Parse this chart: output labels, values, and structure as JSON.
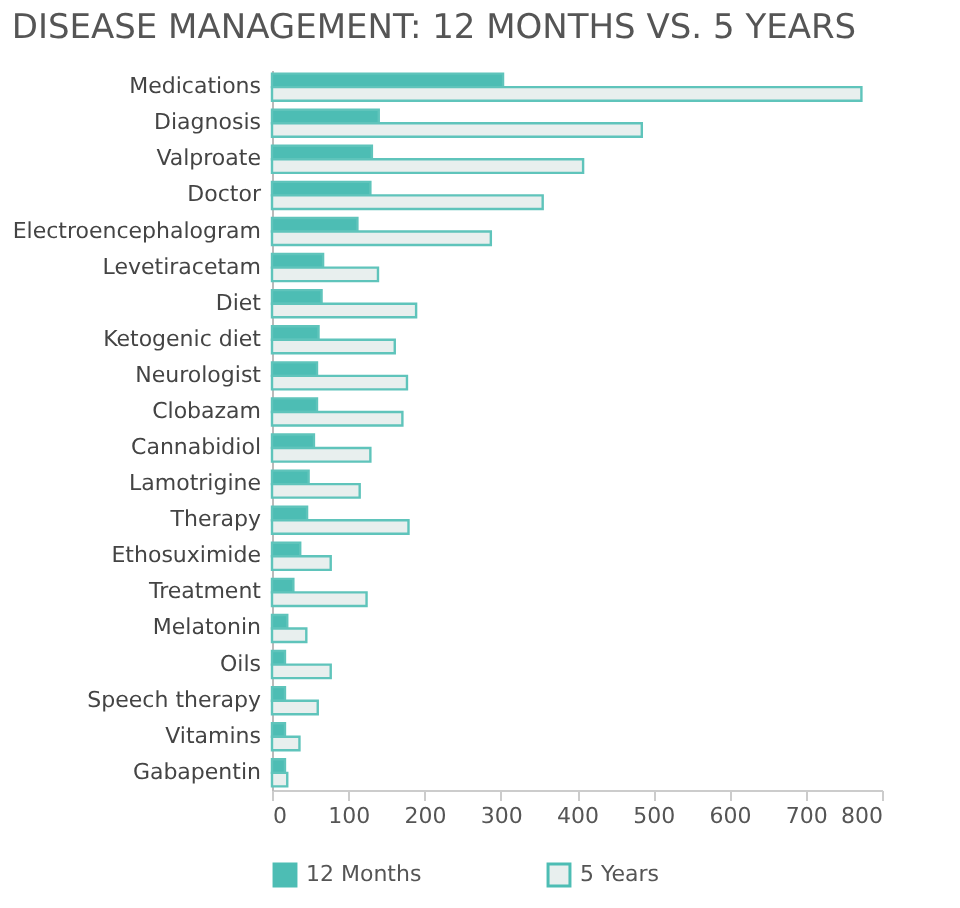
{
  "chart_data": {
    "type": "bar",
    "orientation": "horizontal",
    "title": "DISEASE MANAGEMENT: 12 MONTHS VS. 5 YEARS",
    "categories": [
      "Medications",
      "Diagnosis",
      "Valproate",
      "Doctor",
      "Electroencephalogram",
      "Levetiracetam",
      "Diet",
      "Ketogenic diet",
      "Neurologist",
      "Clobazam",
      "Cannabidiol",
      "Lamotrigine",
      "Therapy",
      "Ethosuximide",
      "Treatment",
      "Melatonin",
      "Oils",
      "Speech therapy",
      "Vitamins",
      "Gabapentin"
    ],
    "series": [
      {
        "name": "12 Months",
        "color": "#4dbdb4",
        "values": [
          303,
          140,
          131,
          129,
          112,
          67,
          65,
          61,
          59,
          59,
          55,
          48,
          46,
          37,
          28,
          20,
          17,
          17,
          17,
          17
        ]
      },
      {
        "name": "5 Years",
        "color": "#e8efee",
        "values": [
          773,
          485,
          408,
          355,
          287,
          139,
          189,
          161,
          177,
          171,
          129,
          115,
          179,
          77,
          124,
          45,
          77,
          60,
          36,
          20
        ]
      }
    ],
    "xlim": [
      0,
      800
    ],
    "xticks": [
      0,
      100,
      200,
      300,
      400,
      500,
      600,
      700,
      800
    ],
    "grid": false,
    "legend": "bottom"
  }
}
